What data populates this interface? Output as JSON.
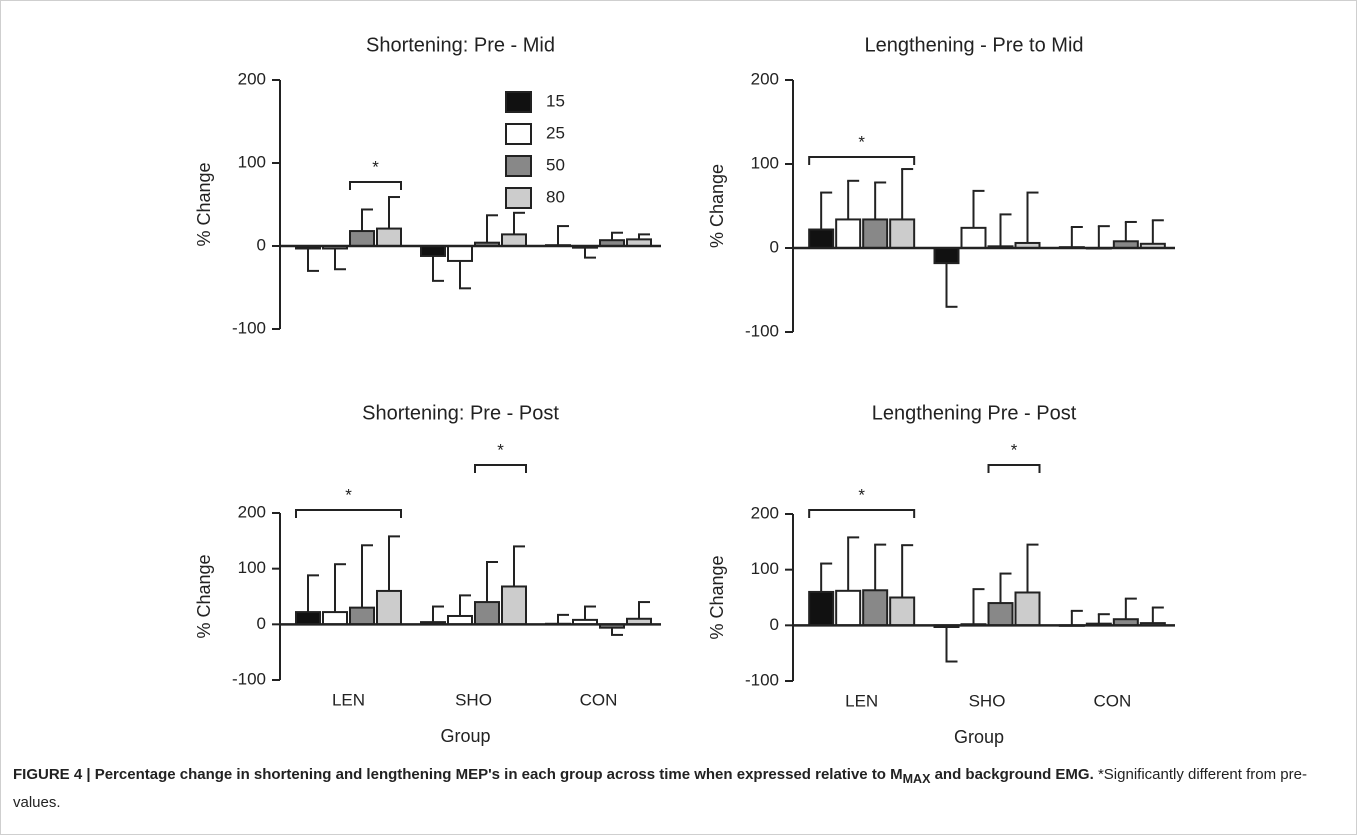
{
  "chart_data": [
    {
      "type": "bar",
      "title": "Shortening: Pre - Mid",
      "ylabel": "% Change",
      "ylim": [
        -100,
        200
      ],
      "yticks": [
        -100,
        0,
        100,
        200
      ],
      "legend": "upper right",
      "annotations": [
        "*"
      ],
      "series": [
        {
          "name": "15",
          "color": "#111111",
          "values": [
            -3,
            -12,
            1
          ],
          "errors": [
            27,
            30,
            23
          ]
        },
        {
          "name": "25",
          "color": "#ffffff",
          "values": [
            -3,
            -18,
            -2
          ],
          "errors": [
            25,
            33,
            12
          ]
        },
        {
          "name": "50",
          "color": "#888888",
          "values": [
            18,
            4,
            7
          ],
          "errors": [
            26,
            33,
            9
          ]
        },
        {
          "name": "80",
          "color": "#cccccc",
          "values": [
            21,
            14,
            8
          ],
          "errors": [
            38,
            26,
            6
          ]
        }
      ]
    },
    {
      "type": "bar",
      "title": "Lengthening - Pre to Mid",
      "ylabel": "% Change",
      "ylim": [
        -100,
        200
      ],
      "yticks": [
        -100,
        0,
        100,
        200
      ],
      "annotations": [
        "*"
      ],
      "series": [
        {
          "color": "#111111",
          "values": [
            22,
            -18,
            1
          ],
          "errors": [
            44,
            52,
            24
          ]
        },
        {
          "color": "#ffffff",
          "values": [
            34,
            24,
            0
          ],
          "errors": [
            46,
            44,
            26
          ]
        },
        {
          "color": "#888888",
          "values": [
            34,
            2,
            8
          ],
          "errors": [
            44,
            38,
            23
          ]
        },
        {
          "color": "#cccccc",
          "values": [
            34,
            6,
            5
          ],
          "errors": [
            60,
            60,
            28
          ]
        }
      ]
    },
    {
      "type": "bar",
      "title": "Shortening: Pre - Post",
      "ylabel": "% Change",
      "xlabel": "Group",
      "categories": [
        "LEN",
        "SHO",
        "CON"
      ],
      "ylim": [
        -100,
        200
      ],
      "yticks": [
        -100,
        0,
        100,
        200
      ],
      "annotations": [
        "*",
        "*"
      ],
      "series": [
        {
          "color": "#111111",
          "values": [
            22,
            4,
            1
          ],
          "errors": [
            66,
            28,
            16
          ]
        },
        {
          "color": "#ffffff",
          "values": [
            22,
            15,
            8
          ],
          "errors": [
            86,
            37,
            24
          ]
        },
        {
          "color": "#888888",
          "values": [
            30,
            40,
            -6
          ],
          "errors": [
            112,
            72,
            13
          ]
        },
        {
          "color": "#cccccc",
          "values": [
            60,
            68,
            10
          ],
          "errors": [
            98,
            72,
            30
          ]
        }
      ]
    },
    {
      "type": "bar",
      "title": "Lengthening Pre - Post",
      "ylabel": "% Change",
      "xlabel": "Group",
      "categories": [
        "LEN",
        "SHO",
        "CON"
      ],
      "ylim": [
        -100,
        200
      ],
      "yticks": [
        -100,
        0,
        100,
        200
      ],
      "annotations": [
        "*",
        "*"
      ],
      "series": [
        {
          "color": "#111111",
          "values": [
            60,
            -3,
            0
          ],
          "errors": [
            51,
            62,
            26
          ]
        },
        {
          "color": "#ffffff",
          "values": [
            62,
            2,
            3
          ],
          "errors": [
            96,
            63,
            17
          ]
        },
        {
          "color": "#888888",
          "values": [
            63,
            40,
            11
          ],
          "errors": [
            82,
            53,
            37
          ]
        },
        {
          "color": "#cccccc",
          "values": [
            50,
            59,
            4
          ],
          "errors": [
            94,
            86,
            28
          ]
        }
      ]
    }
  ],
  "caption": {
    "bold_start": "FIGURE 4 | Percentage change in shortening and lengthening MEP's in each group across time when expressed relative to M",
    "subscript": "MAX",
    "bold_end": " and background EMG.",
    "note": "*Significantly different from pre-values."
  }
}
